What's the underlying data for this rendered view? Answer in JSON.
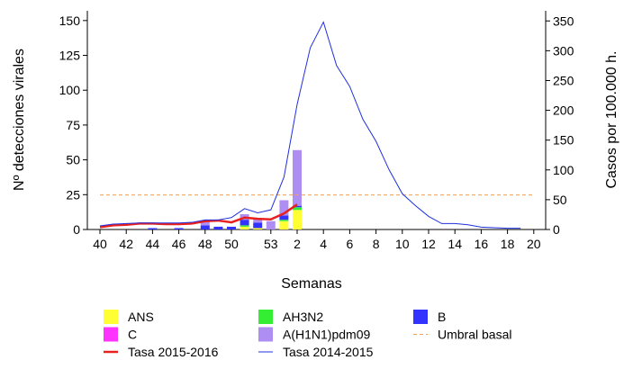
{
  "chart_data": {
    "type": "bar_line",
    "x_label": "Semanas",
    "y_label": "Nº detecciones virales",
    "y2_label": "Casos por 100.000 h.",
    "categories": [
      "40",
      null,
      "42",
      null,
      "44",
      null,
      "46",
      null,
      "48",
      null,
      "50",
      null,
      null,
      "53",
      null,
      "2",
      null,
      "4",
      null,
      "6",
      null,
      "8",
      null,
      "10",
      null,
      "12",
      null,
      "14",
      null,
      "16",
      null,
      "18",
      null,
      "20"
    ],
    "ylim": [
      0,
      157
    ],
    "yticks": [
      0,
      25,
      50,
      75,
      100,
      125,
      150
    ],
    "y2lim": [
      0,
      367
    ],
    "y2ticks": [
      0,
      50,
      100,
      150,
      200,
      250,
      300,
      350
    ],
    "series": [
      {
        "name": "ANS",
        "type": "bar",
        "color": "#ffff33",
        "values": [
          0,
          0,
          0,
          0,
          0,
          0,
          0,
          0,
          0,
          0,
          0,
          2,
          1,
          0,
          6,
          14,
          0,
          0,
          0,
          0,
          0,
          0,
          0,
          0,
          0,
          0,
          0,
          0,
          0,
          0,
          0,
          0,
          0,
          0
        ]
      },
      {
        "name": "AH3N2",
        "type": "bar",
        "color": "#33ee33",
        "values": [
          0,
          0,
          0,
          0,
          0,
          0,
          0,
          0,
          0,
          0,
          0,
          1,
          0,
          0,
          1,
          2,
          0,
          0,
          0,
          0,
          0,
          0,
          0,
          0,
          0,
          0,
          0,
          0,
          0,
          0,
          0,
          0,
          0,
          0
        ]
      },
      {
        "name": "B",
        "type": "bar",
        "color": "#3333ff",
        "values": [
          0,
          0,
          0,
          0,
          1,
          0,
          1,
          0,
          3,
          2,
          2,
          4,
          4,
          0,
          3,
          1,
          0,
          0,
          0,
          0,
          0,
          0,
          0,
          0,
          0,
          0,
          0,
          0,
          0,
          0,
          0,
          0,
          0,
          0
        ]
      },
      {
        "name": "C",
        "type": "bar",
        "color": "#ff33ff",
        "values": [
          0,
          0,
          0,
          0,
          0,
          0,
          0,
          0,
          0,
          0,
          0,
          0,
          0,
          0,
          0,
          0,
          0,
          0,
          0,
          0,
          0,
          0,
          0,
          0,
          0,
          0,
          0,
          0,
          0,
          0,
          0,
          0,
          0,
          0
        ]
      },
      {
        "name": "A(H1N1)pdm09",
        "type": "bar",
        "color": "#ae8ef2",
        "values": [
          0,
          0,
          0,
          0,
          0,
          0,
          0,
          0,
          3,
          0,
          0,
          4,
          3,
          6,
          11,
          40,
          0,
          0,
          0,
          0,
          0,
          0,
          0,
          0,
          0,
          0,
          0,
          0,
          0,
          0,
          0,
          0,
          0,
          0
        ]
      },
      {
        "name": "Umbral basal",
        "type": "threshold",
        "axis": "y2",
        "color": "#f0a050",
        "value": 58
      },
      {
        "name": "Tasa 2015-2016",
        "type": "line",
        "axis": "y2",
        "color": "#e8201e",
        "values": [
          4,
          7,
          8,
          10,
          10,
          9,
          9,
          10,
          14,
          15,
          12,
          20,
          18,
          17,
          27,
          42,
          null,
          null,
          null,
          null,
          null,
          null,
          null,
          null,
          null,
          null,
          null,
          null,
          null,
          null,
          null,
          null,
          null,
          null
        ]
      },
      {
        "name": "Tasa 2014-2015",
        "type": "line",
        "axis": "y2",
        "color": "#2030e0",
        "values": [
          6,
          9,
          10,
          11,
          11,
          11,
          11,
          12,
          16,
          16,
          20,
          35,
          28,
          33,
          88,
          210,
          305,
          348,
          275,
          240,
          185,
          148,
          100,
          60,
          40,
          22,
          10,
          10,
          8,
          4,
          3,
          2,
          2,
          null
        ]
      }
    ]
  }
}
